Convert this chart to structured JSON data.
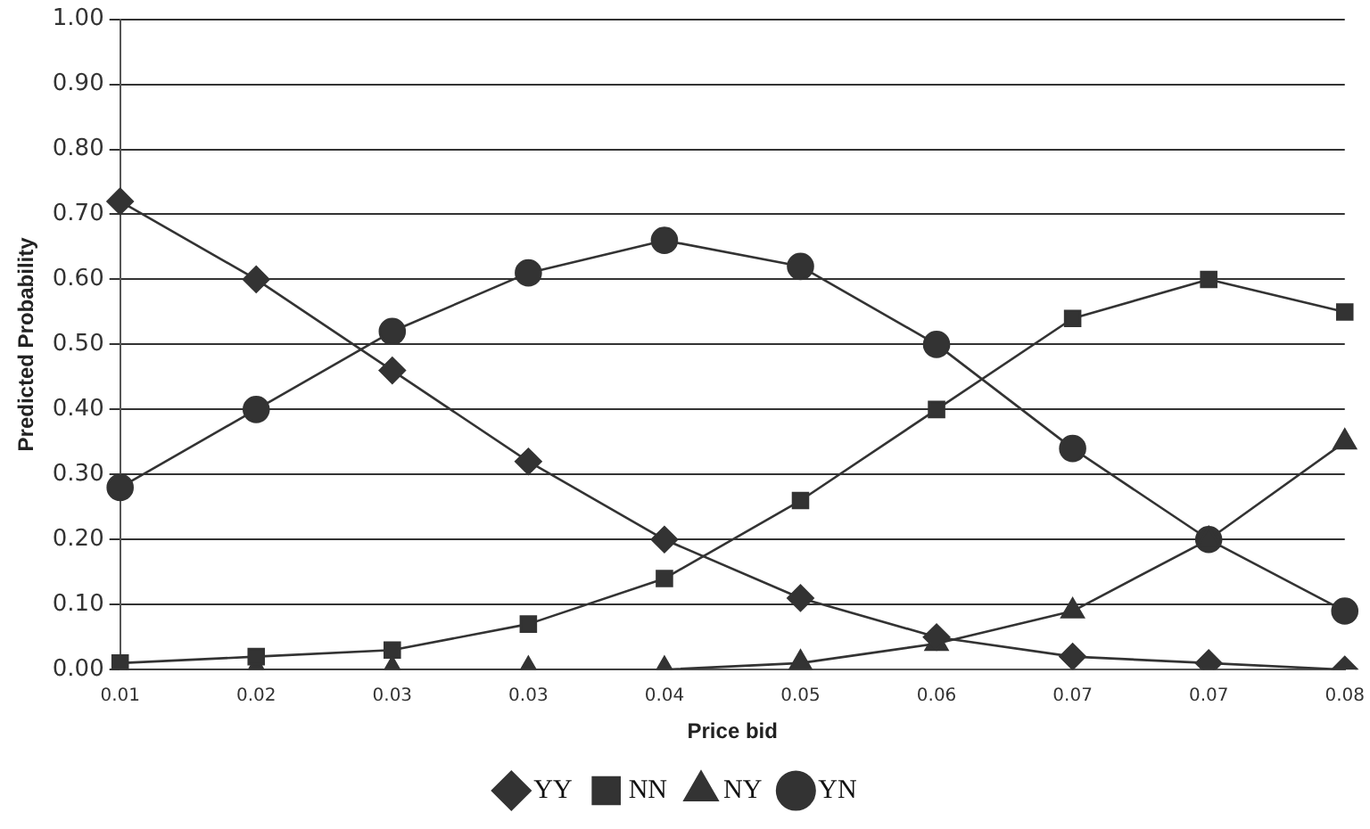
{
  "chart_data": {
    "type": "line",
    "xlabel": "Price bid",
    "ylabel": "Predicted Probability",
    "categories": [
      "0.01",
      "0.02",
      "0.03",
      "0.03",
      "0.04",
      "0.05",
      "0.06",
      "0.07",
      "0.07",
      "0.08"
    ],
    "series": [
      {
        "name": "YY",
        "color": "#333333",
        "marker": "diamond",
        "values": [
          0.72,
          0.6,
          0.46,
          0.32,
          0.2,
          0.11,
          0.05,
          0.02,
          0.01,
          0.0
        ]
      },
      {
        "name": "NN",
        "color": "#333333",
        "marker": "square",
        "values": [
          0.01,
          0.02,
          0.03,
          0.07,
          0.14,
          0.26,
          0.4,
          0.54,
          0.6,
          0.55
        ]
      },
      {
        "name": "NY",
        "color": "#333333",
        "marker": "triangle",
        "values": [
          0.0,
          0.0,
          0.0,
          0.0,
          0.0,
          0.01,
          0.04,
          0.09,
          0.2,
          0.35
        ]
      },
      {
        "name": "YN",
        "color": "#333333",
        "marker": "circle",
        "values": [
          0.28,
          0.4,
          0.52,
          0.61,
          0.66,
          0.62,
          0.5,
          0.34,
          0.2,
          0.09
        ]
      }
    ],
    "ylim": [
      0,
      1
    ],
    "yticks": [
      {
        "value": 0,
        "label": "0.00"
      },
      {
        "value": 0.1,
        "label": "0.10"
      },
      {
        "value": 0.2,
        "label": "0.20"
      },
      {
        "value": 0.3,
        "label": "0.30"
      },
      {
        "value": 0.4,
        "label": "0.40"
      },
      {
        "value": 0.5,
        "label": "0.50"
      },
      {
        "value": 0.6,
        "label": "0.60"
      },
      {
        "value": 0.7,
        "label": "0.70"
      },
      {
        "value": 0.8,
        "label": "0.80"
      },
      {
        "value": 0.9,
        "label": "0.90"
      },
      {
        "value": 1,
        "label": "1.00"
      }
    ],
    "grid": "y",
    "legend": "bottom",
    "line_style": "solid"
  }
}
